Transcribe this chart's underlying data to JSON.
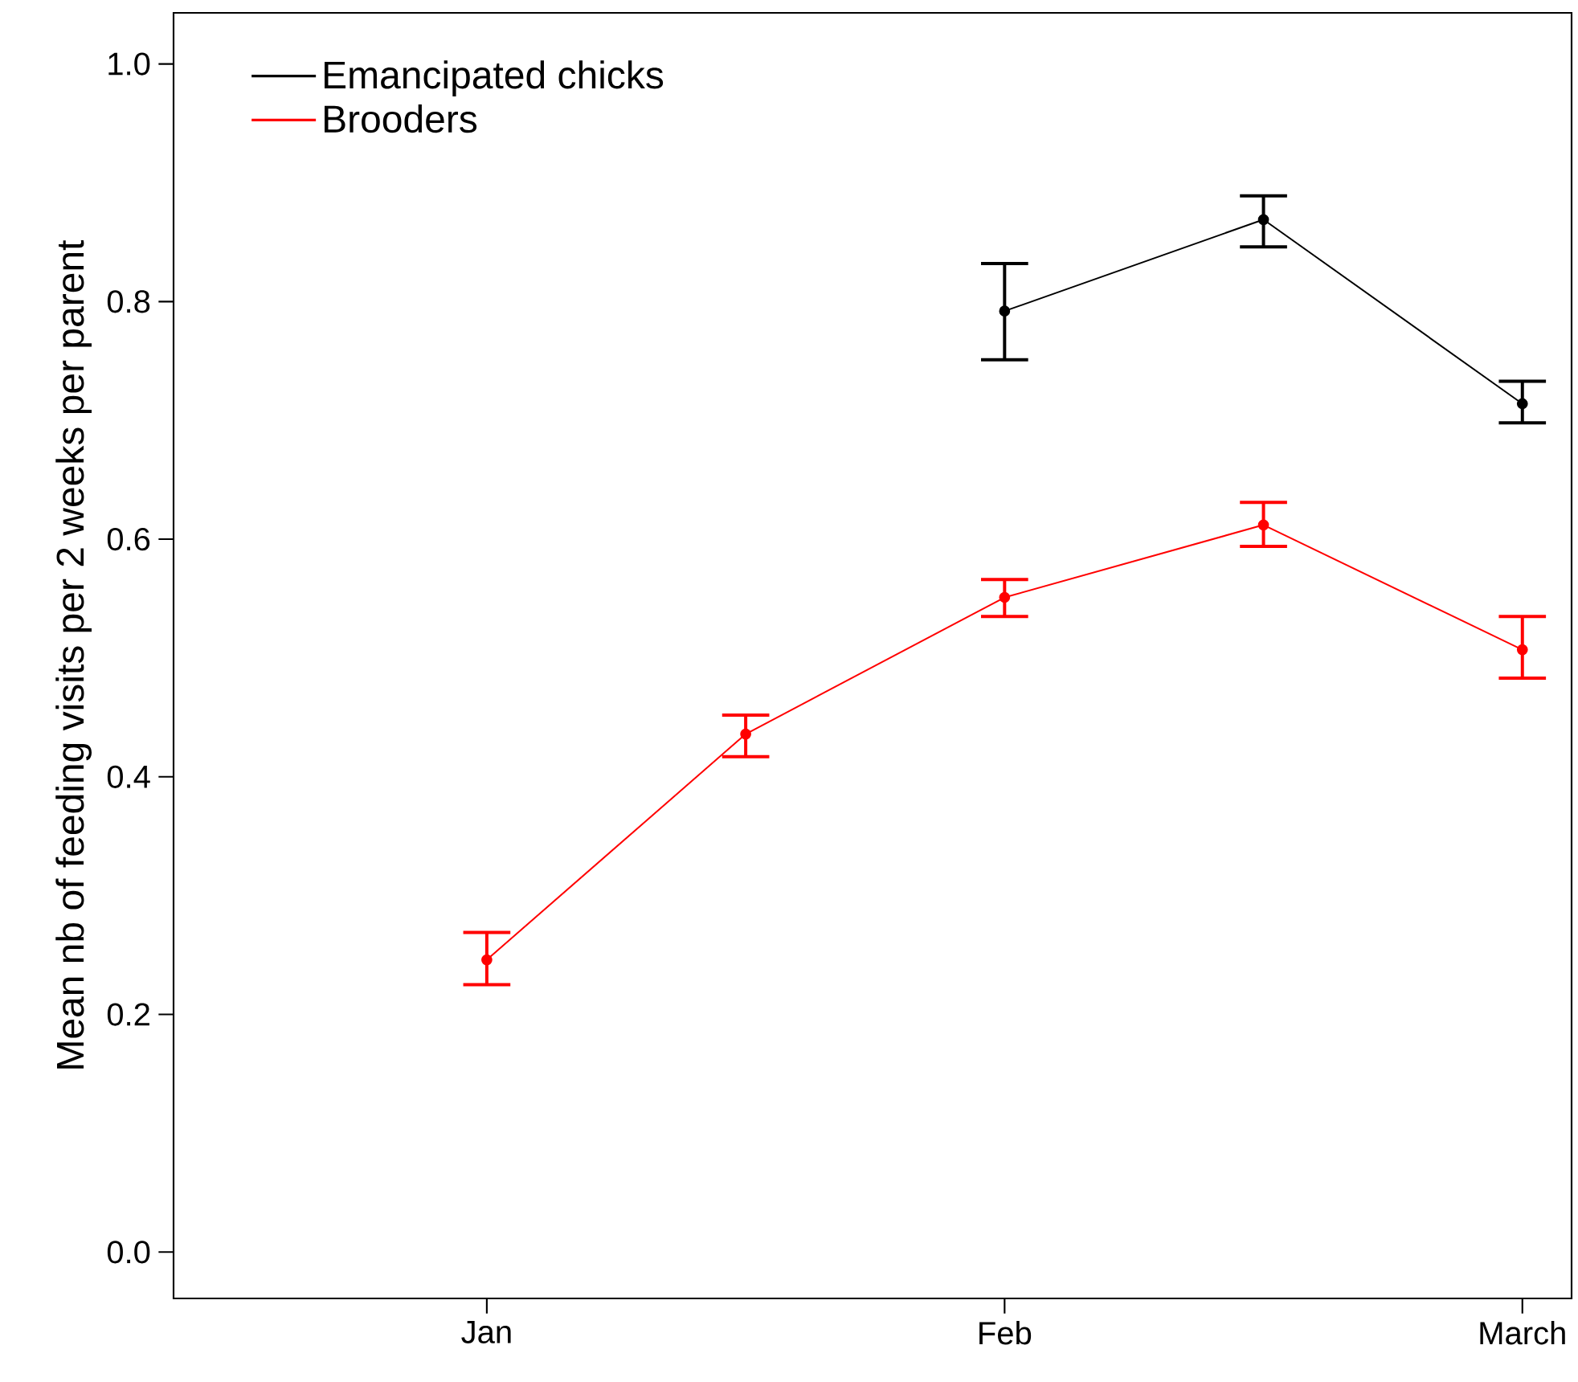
{
  "chart_data": {
    "type": "line",
    "ylabel": "Mean nb of feeding visits per 2 weeks per parent",
    "categories": [
      "Jan",
      null,
      "Feb",
      null,
      "March"
    ],
    "series": [
      {
        "name": "Emancipated chicks",
        "color": "#000000",
        "values": [
          null,
          null,
          0.792,
          0.869,
          0.714
        ],
        "errors": [
          null,
          null,
          [
            0.751,
            0.832
          ],
          [
            0.846,
            0.889
          ],
          [
            0.698,
            0.733
          ]
        ]
      },
      {
        "name": "Brooders",
        "color": "#ff0000",
        "values": [
          0.246,
          0.436,
          0.551,
          0.612,
          0.507
        ],
        "errors": [
          [
            0.225,
            0.269
          ],
          [
            0.417,
            0.452
          ],
          [
            0.535,
            0.566
          ],
          [
            0.594,
            0.631
          ],
          [
            0.483,
            0.535
          ]
        ]
      }
    ],
    "ylim": [
      0,
      1.0
    ],
    "yticks": [
      {
        "value": 0,
        "label": "0.0"
      },
      {
        "value": 0.2,
        "label": "0.2"
      },
      {
        "value": 0.4,
        "label": "0.4"
      },
      {
        "value": 0.6,
        "label": "0.6"
      },
      {
        "value": 0.8,
        "label": "0.8"
      },
      {
        "value": 1.0,
        "label": "1.0"
      }
    ],
    "grid": false,
    "legend": "top left",
    "marker": "circle",
    "line_style": "solid"
  }
}
